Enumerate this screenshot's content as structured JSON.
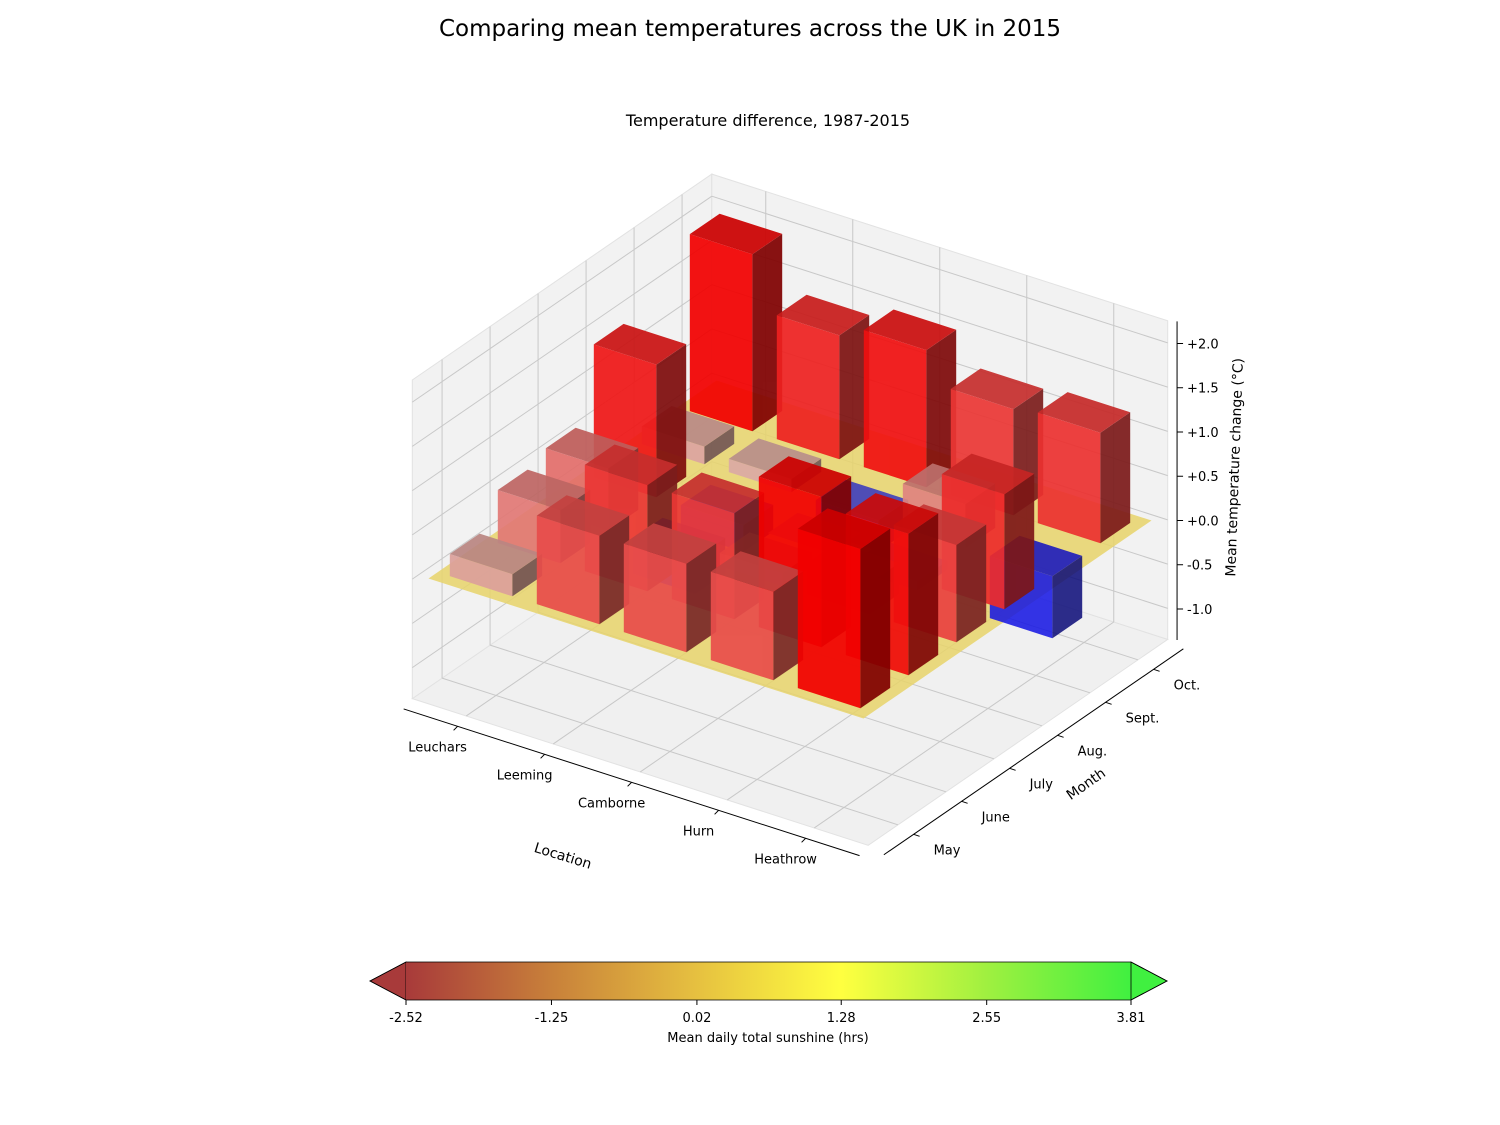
{
  "chart_data": {
    "type": "bar3d",
    "title": "Comparing mean temperatures across the UK in 2015",
    "subtitle": "Temperature difference, 1987-2015",
    "xlabel": "Location",
    "ylabel": "Month",
    "zlabel": "Mean temperature change (°C)",
    "locations": [
      "Leuchars",
      "Leeming",
      "Camborne",
      "Hurn",
      "Heathrow"
    ],
    "months": [
      "May",
      "June",
      "July",
      "Aug.",
      "Sept.",
      "Oct."
    ],
    "z_ticks": [
      "-1.0",
      "-0.5",
      "+0.0",
      "+0.5",
      "+1.0",
      "+1.5",
      "+2.0"
    ],
    "zlim": [
      -1.35,
      2.25
    ],
    "baseline_plane_color": "#e8d36a",
    "bars": [
      {
        "location": "Leuchars",
        "month": "May",
        "value": 0.25
      },
      {
        "location": "Leeming",
        "month": "May",
        "value": 1.0
      },
      {
        "location": "Camborne",
        "month": "May",
        "value": 1.0
      },
      {
        "location": "Hurn",
        "month": "May",
        "value": 1.0
      },
      {
        "location": "Heathrow",
        "month": "May",
        "value": 1.8
      },
      {
        "location": "Leuchars",
        "month": "June",
        "value": 0.6
      },
      {
        "location": "Leeming",
        "month": "June",
        "value": 1.2
      },
      {
        "location": "Camborne",
        "month": "June",
        "value": 1.2
      },
      {
        "location": "Hurn",
        "month": "June",
        "value": 1.7
      },
      {
        "location": "Heathrow",
        "month": "June",
        "value": 1.6
      },
      {
        "location": "Leuchars",
        "month": "July",
        "value": 0.7
      },
      {
        "location": "Leeming",
        "month": "July",
        "value": -0.4
      },
      {
        "location": "Camborne",
        "month": "July",
        "value": 0.15
      },
      {
        "location": "Hurn",
        "month": "July",
        "value": 0.35
      },
      {
        "location": "Heathrow",
        "month": "July",
        "value": 1.1
      },
      {
        "location": "Leuchars",
        "month": "Aug.",
        "value": 1.5
      },
      {
        "location": "Leeming",
        "month": "Aug.",
        "value": -0.3
      },
      {
        "location": "Camborne",
        "month": "Aug.",
        "value": 0.0
      },
      {
        "location": "Hurn",
        "month": "Aug.",
        "value": -0.1
      },
      {
        "location": "Heathrow",
        "month": "Aug.",
        "value": 1.3
      },
      {
        "location": "Leuchars",
        "month": "Sept.",
        "value": 0.2
      },
      {
        "location": "Leeming",
        "month": "Sept.",
        "value": 0.15
      },
      {
        "location": "Camborne",
        "month": "Sept.",
        "value": -0.35
      },
      {
        "location": "Hurn",
        "month": "Sept.",
        "value": 0.5
      },
      {
        "location": "Heathrow",
        "month": "Sept.",
        "value": -0.7
      },
      {
        "location": "Leuchars",
        "month": "Oct.",
        "value": 2.0
      },
      {
        "location": "Leeming",
        "month": "Oct.",
        "value": 1.4
      },
      {
        "location": "Camborne",
        "month": "Oct.",
        "value": 1.55
      },
      {
        "location": "Hurn",
        "month": "Oct.",
        "value": 1.2
      },
      {
        "location": "Heathrow",
        "month": "Oct.",
        "value": 1.25
      }
    ],
    "colorbar": {
      "label": "Mean daily total sunshine (hrs)",
      "ticks": [
        "-2.52",
        "-1.25",
        "0.02",
        "1.28",
        "2.55",
        "3.81"
      ],
      "range": [
        -2.52,
        3.81
      ],
      "colors": [
        "#a83a3a",
        "#c8803a",
        "#e6c040",
        "#ffff40",
        "#a0f040",
        "#40f040"
      ],
      "extend": "both"
    }
  }
}
